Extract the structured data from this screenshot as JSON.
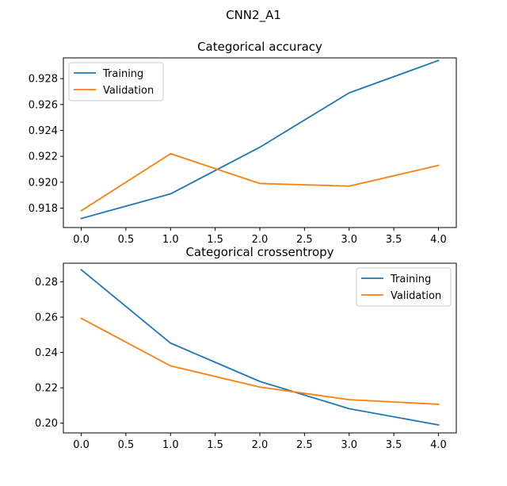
{
  "figure": {
    "suptitle": "CNN2_A1"
  },
  "chart_data": [
    {
      "type": "line",
      "title": "Categorical accuracy",
      "xlabel": "",
      "ylabel": "",
      "x": [
        0,
        1,
        2,
        3,
        4
      ],
      "xlim": [
        -0.2,
        4.2
      ],
      "ylim": [
        0.9165,
        0.9296
      ],
      "xticks": [
        0.0,
        0.5,
        1.0,
        1.5,
        2.0,
        2.5,
        3.0,
        3.5,
        4.0
      ],
      "xtick_labels": [
        "0.0",
        "0.5",
        "1.0",
        "1.5",
        "2.0",
        "2.5",
        "3.0",
        "3.5",
        "4.0"
      ],
      "yticks": [
        0.918,
        0.92,
        0.922,
        0.924,
        0.926,
        0.928
      ],
      "ytick_labels": [
        "0.918",
        "0.920",
        "0.922",
        "0.924",
        "0.926",
        "0.928"
      ],
      "legend": "top-left",
      "grid": false,
      "series": [
        {
          "name": "Training",
          "color": "#1f77b4",
          "values": [
            0.9172,
            0.9191,
            0.9227,
            0.9269,
            0.9294
          ]
        },
        {
          "name": "Validation",
          "color": "#ff7f0e",
          "values": [
            0.9178,
            0.9222,
            0.9199,
            0.9197,
            0.9213
          ]
        }
      ]
    },
    {
      "type": "line",
      "title": "Categorical crossentropy",
      "xlabel": "",
      "ylabel": "",
      "x": [
        0,
        1,
        2,
        3,
        4
      ],
      "xlim": [
        -0.2,
        4.2
      ],
      "ylim": [
        0.1945,
        0.2905
      ],
      "xticks": [
        0.0,
        0.5,
        1.0,
        1.5,
        2.0,
        2.5,
        3.0,
        3.5,
        4.0
      ],
      "xtick_labels": [
        "0.0",
        "0.5",
        "1.0",
        "1.5",
        "2.0",
        "2.5",
        "3.0",
        "3.5",
        "4.0"
      ],
      "yticks": [
        0.2,
        0.22,
        0.24,
        0.26,
        0.28
      ],
      "ytick_labels": [
        "0.20",
        "0.22",
        "0.24",
        "0.26",
        "0.28"
      ],
      "legend": "top-right",
      "grid": false,
      "series": [
        {
          "name": "Training",
          "color": "#1f77b4",
          "values": [
            0.2868,
            0.2453,
            0.2236,
            0.2082,
            0.199
          ]
        },
        {
          "name": "Validation",
          "color": "#ff7f0e",
          "values": [
            0.2593,
            0.2324,
            0.2204,
            0.2133,
            0.2107
          ]
        }
      ]
    }
  ]
}
